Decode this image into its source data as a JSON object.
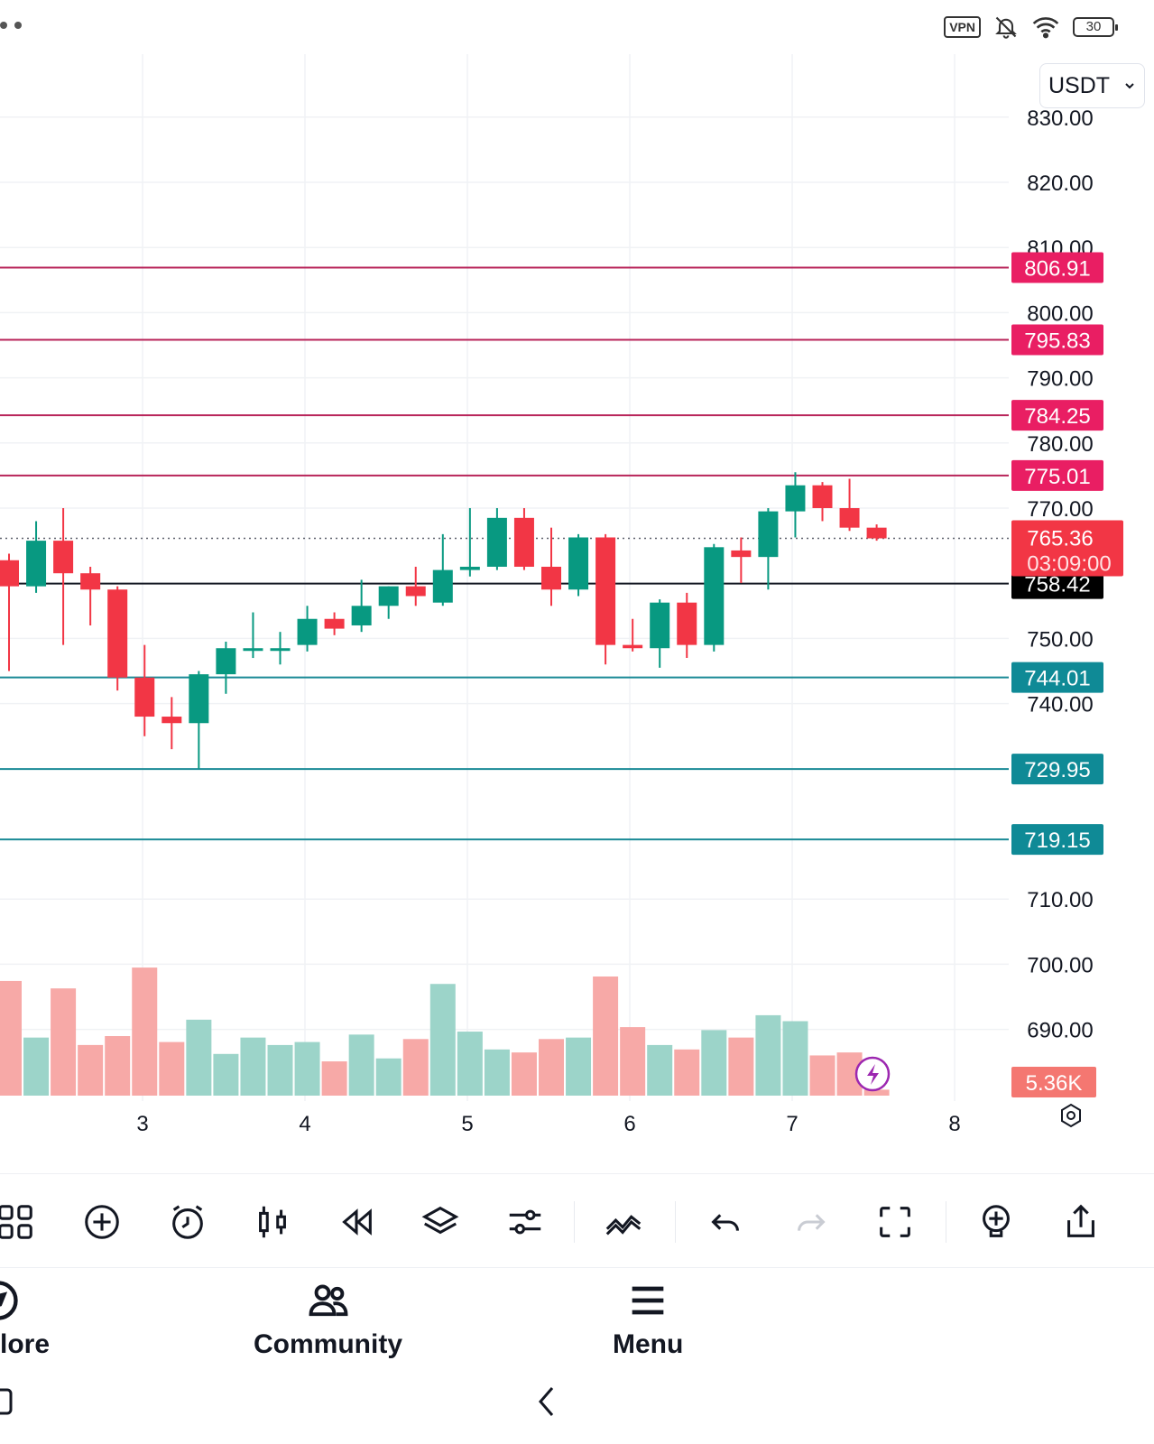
{
  "status_bar": {
    "vpn_label": "VPN",
    "battery_level": "30",
    "icons": [
      "vpn-icon",
      "bell-muted-icon",
      "wifi-icon",
      "battery-icon"
    ]
  },
  "currency": {
    "selected": "USDT"
  },
  "colors": {
    "up": "#089981",
    "down": "#f23645",
    "resistance_line": "#b8245a",
    "resistance_label_bg": "#e91e63",
    "support_line": "#1a8a96",
    "support_label_bg": "#0f8a96",
    "current_price_bg": "#f23645",
    "marker_bg": "#000000",
    "volume_up": "#9cd4c9",
    "volume_down": "#f7a9a7"
  },
  "chart_data": {
    "type": "candlestick",
    "x_ticks": [
      "3",
      "4",
      "5",
      "6",
      "7",
      "8"
    ],
    "y_ticks": [
      "830.00",
      "820.00",
      "810.00",
      "800.00",
      "790.00",
      "780.00",
      "770.00",
      "750.00",
      "740.00",
      "710.00",
      "700.00",
      "690.00"
    ],
    "ylim": [
      682,
      840
    ],
    "grid": true,
    "candles": [
      {
        "o": 762,
        "h": 763,
        "l": 745,
        "c": 758
      },
      {
        "o": 758,
        "h": 768,
        "l": 757,
        "c": 765
      },
      {
        "o": 765,
        "h": 770,
        "l": 749,
        "c": 760
      },
      {
        "o": 760,
        "h": 761,
        "l": 752,
        "c": 757.5
      },
      {
        "o": 757.5,
        "h": 758,
        "l": 742,
        "c": 744
      },
      {
        "o": 744,
        "h": 749,
        "l": 735,
        "c": 738
      },
      {
        "o": 738,
        "h": 741,
        "l": 733,
        "c": 737
      },
      {
        "o": 737,
        "h": 745,
        "l": 730,
        "c": 744.5
      },
      {
        "o": 744.5,
        "h": 749.5,
        "l": 741.5,
        "c": 748.5
      },
      {
        "o": 748.5,
        "h": 754,
        "l": 747,
        "c": 748.5
      },
      {
        "o": 748.5,
        "h": 751,
        "l": 746,
        "c": 748.5
      },
      {
        "o": 749,
        "h": 755,
        "l": 748,
        "c": 753
      },
      {
        "o": 753,
        "h": 754,
        "l": 750.5,
        "c": 751.5
      },
      {
        "o": 752,
        "h": 759,
        "l": 751,
        "c": 755
      },
      {
        "o": 755,
        "h": 758,
        "l": 753,
        "c": 758
      },
      {
        "o": 758,
        "h": 761,
        "l": 755,
        "c": 756.5
      },
      {
        "o": 755.5,
        "h": 766,
        "l": 755,
        "c": 760.5
      },
      {
        "o": 760.5,
        "h": 770,
        "l": 759.5,
        "c": 761
      },
      {
        "o": 761,
        "h": 770,
        "l": 760.5,
        "c": 768.5
      },
      {
        "o": 768.5,
        "h": 770,
        "l": 760.5,
        "c": 761
      },
      {
        "o": 761,
        "h": 767,
        "l": 755,
        "c": 757.5
      },
      {
        "o": 757.5,
        "h": 766,
        "l": 756.5,
        "c": 765.5
      },
      {
        "o": 765.5,
        "h": 766,
        "l": 746,
        "c": 749
      },
      {
        "o": 749,
        "h": 753,
        "l": 748,
        "c": 748.5
      },
      {
        "o": 748.5,
        "h": 756,
        "l": 745.5,
        "c": 755.5
      },
      {
        "o": 755.5,
        "h": 757,
        "l": 747,
        "c": 749
      },
      {
        "o": 749,
        "h": 764.5,
        "l": 748,
        "c": 764
      },
      {
        "o": 763.5,
        "h": 765.5,
        "l": 758.5,
        "c": 762.5
      },
      {
        "o": 762.5,
        "h": 770,
        "l": 757.5,
        "c": 769.5
      },
      {
        "o": 769.5,
        "h": 775.5,
        "l": 765.5,
        "c": 773.5
      },
      {
        "o": 773.5,
        "h": 774,
        "l": 768,
        "c": 770
      },
      {
        "o": 770,
        "h": 774.5,
        "l": 766.5,
        "c": 767
      },
      {
        "o": 767,
        "h": 767.5,
        "l": 765,
        "c": 765.36
      }
    ],
    "volumes": [
      {
        "v": 7.7,
        "up": false
      },
      {
        "v": 3.9,
        "up": true
      },
      {
        "v": 7.2,
        "up": false
      },
      {
        "v": 3.4,
        "up": false
      },
      {
        "v": 4.0,
        "up": false
      },
      {
        "v": 8.6,
        "up": false
      },
      {
        "v": 3.6,
        "up": false
      },
      {
        "v": 5.1,
        "up": true
      },
      {
        "v": 2.8,
        "up": true
      },
      {
        "v": 3.9,
        "up": true
      },
      {
        "v": 3.4,
        "up": true
      },
      {
        "v": 3.6,
        "up": true
      },
      {
        "v": 2.3,
        "up": false
      },
      {
        "v": 4.1,
        "up": true
      },
      {
        "v": 2.5,
        "up": true
      },
      {
        "v": 3.8,
        "up": false
      },
      {
        "v": 7.5,
        "up": true
      },
      {
        "v": 4.3,
        "up": true
      },
      {
        "v": 3.1,
        "up": true
      },
      {
        "v": 2.9,
        "up": false
      },
      {
        "v": 3.8,
        "up": false
      },
      {
        "v": 3.9,
        "up": true
      },
      {
        "v": 8.0,
        "up": false
      },
      {
        "v": 4.6,
        "up": false
      },
      {
        "v": 3.4,
        "up": true
      },
      {
        "v": 3.1,
        "up": false
      },
      {
        "v": 4.4,
        "up": true
      },
      {
        "v": 3.9,
        "up": false
      },
      {
        "v": 5.4,
        "up": true
      },
      {
        "v": 5.0,
        "up": true
      },
      {
        "v": 2.7,
        "up": false
      },
      {
        "v": 2.9,
        "up": false
      },
      {
        "v": 0.4,
        "up": false
      }
    ],
    "volume_label": "5.36K",
    "horizontal_lines": [
      {
        "price": 806.91,
        "label": "806.91",
        "kind": "resistance"
      },
      {
        "price": 795.83,
        "label": "795.83",
        "kind": "resistance"
      },
      {
        "price": 784.25,
        "label": "784.25",
        "kind": "resistance"
      },
      {
        "price": 775.01,
        "label": "775.01",
        "kind": "resistance"
      },
      {
        "price": 758.42,
        "label": "758.42",
        "kind": "marker"
      },
      {
        "price": 744.01,
        "label": "744.01",
        "kind": "support"
      },
      {
        "price": 729.95,
        "label": "729.95",
        "kind": "support"
      },
      {
        "price": 719.15,
        "label": "719.15",
        "kind": "support"
      }
    ],
    "current_price": {
      "price": 765.36,
      "label": "765.36",
      "countdown": "03:09:00"
    }
  },
  "toolbar": {
    "items": [
      "grid-icon",
      "add-circle-icon",
      "alarm-icon",
      "candles-icon",
      "replay-icon",
      "layers-icon",
      "sliders-icon",
      "pattern-icon",
      "undo-icon",
      "redo-icon",
      "fullscreen-icon",
      "idea-bulb-icon",
      "share-icon"
    ]
  },
  "bottom_nav": {
    "items": [
      {
        "label": "lore",
        "icon": "compass-icon"
      },
      {
        "label": "Community",
        "icon": "community-icon"
      },
      {
        "label": "Menu",
        "icon": "hamburger-icon"
      }
    ]
  }
}
